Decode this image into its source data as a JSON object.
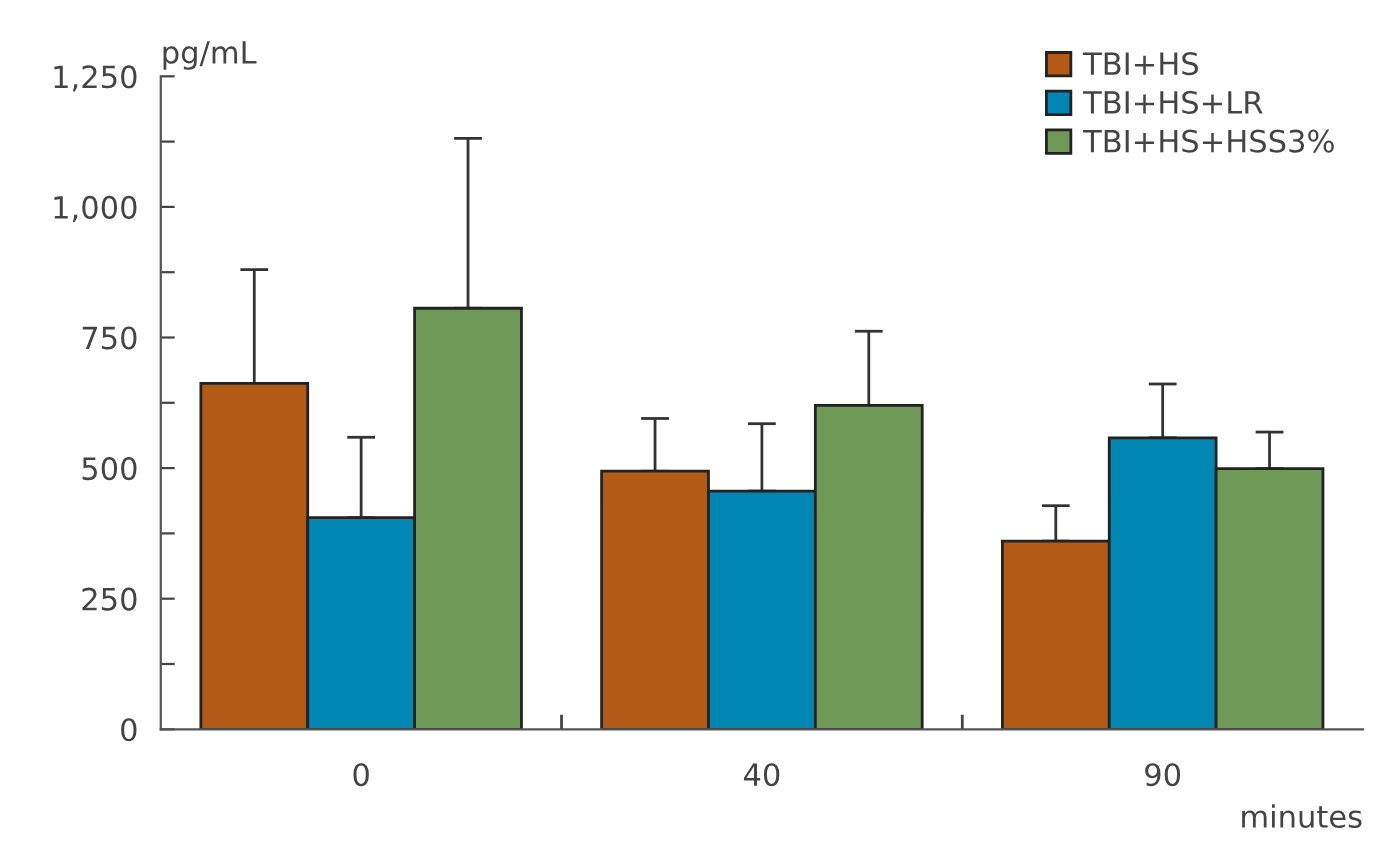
{
  "chart_data": {
    "type": "bar",
    "ylabel": "pg/mL",
    "xlabel": "minutes",
    "categories": [
      "0",
      "40",
      "90"
    ],
    "series": [
      {
        "name": "TBI+HS",
        "color": "#b35a16",
        "values": [
          662,
          494,
          360
        ],
        "errors": [
          [
            662,
            880
          ],
          [
            494,
            595
          ],
          [
            360,
            428
          ]
        ]
      },
      {
        "name": "TBI+HS+LR",
        "color": "#0086b3",
        "values": [
          405,
          456,
          558
        ],
        "errors": [
          [
            405,
            559
          ],
          [
            456,
            585
          ],
          [
            558,
            661
          ]
        ]
      },
      {
        "name": "TBI+HS+HSS3%",
        "color": "#6e9956",
        "values": [
          806,
          620,
          499
        ],
        "errors": [
          [
            806,
            1131
          ],
          [
            620,
            762
          ],
          [
            499,
            569
          ]
        ]
      }
    ],
    "ylim": [
      0,
      1250
    ],
    "yticks": [
      0,
      {
        "value": 125,
        "label": null
      },
      250,
      {
        "value": 375,
        "label": null
      },
      500,
      {
        "value": 625,
        "label": null
      },
      750,
      {
        "value": 875,
        "label": null
      },
      {
        "value": 1000,
        "label": "1,000"
      },
      {
        "value": 1125,
        "label": null
      },
      {
        "value": 1250,
        "label": "1,250"
      }
    ],
    "grid": false,
    "legend": "top right"
  }
}
